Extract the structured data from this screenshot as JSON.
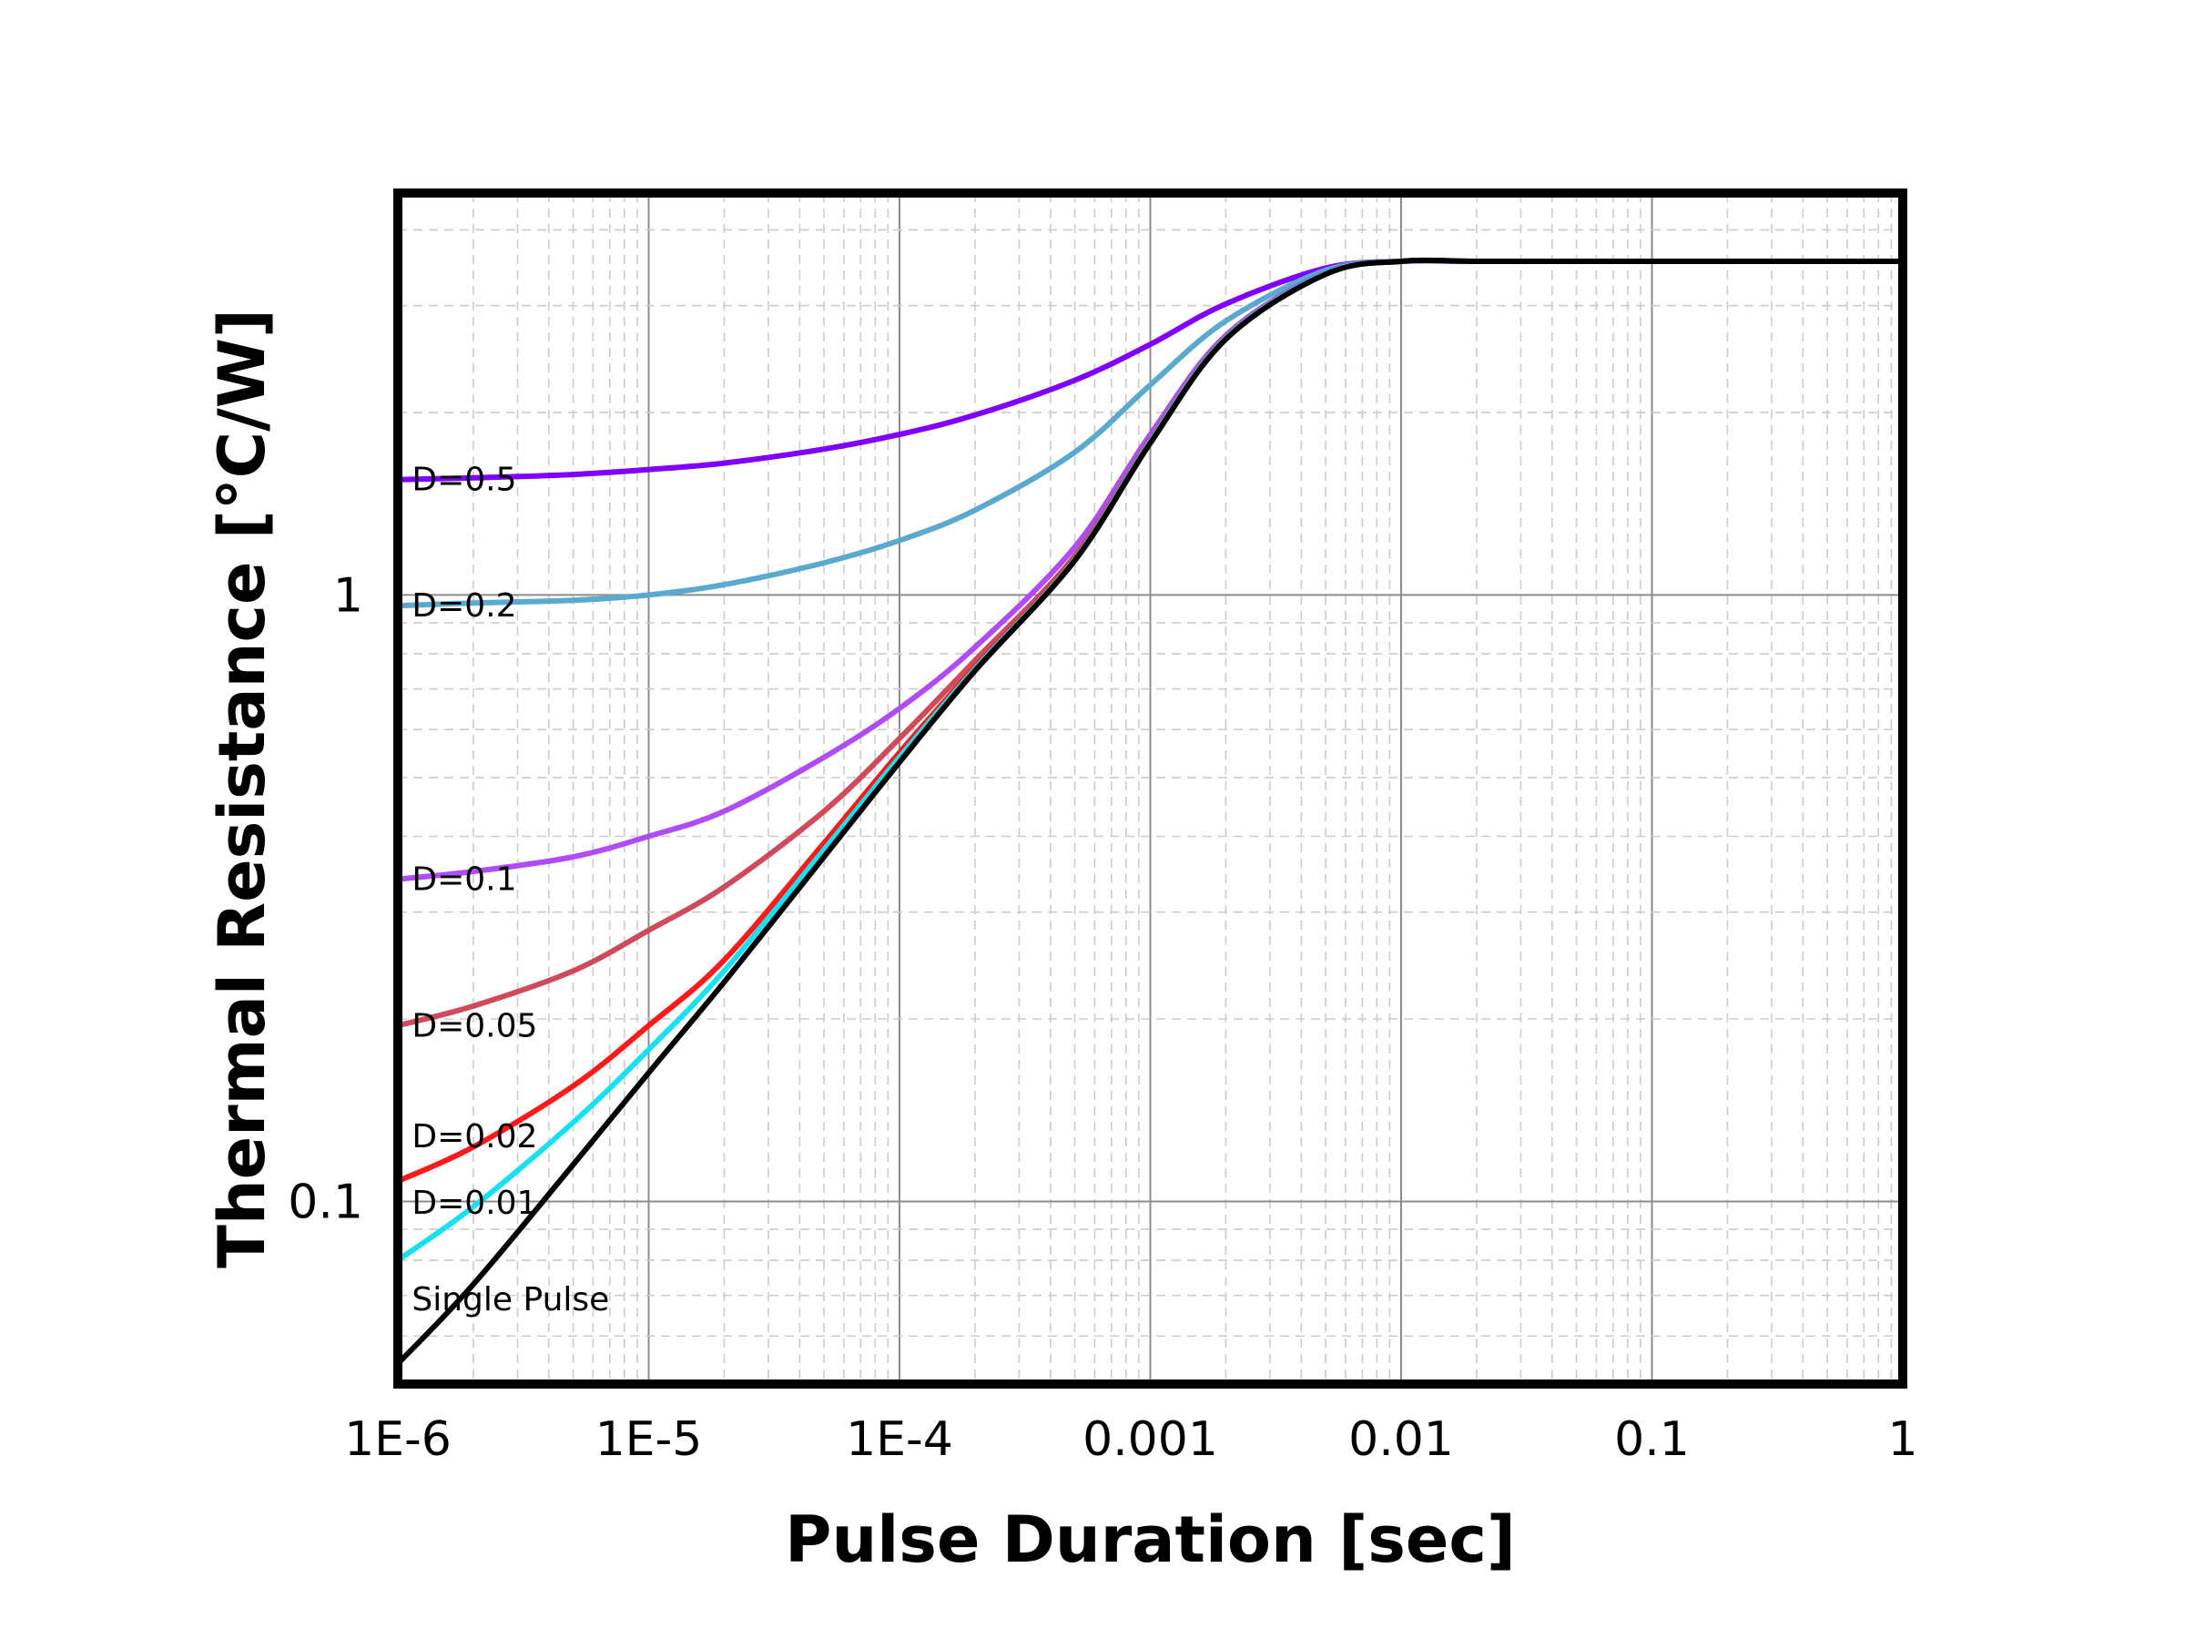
{
  "chart_data": {
    "type": "line",
    "title": "",
    "xlabel": "Pulse Duration [sec]",
    "ylabel": "Thermal Resistance [°C/W]",
    "xscale": "log",
    "yscale": "log",
    "xlim": [
      1e-06,
      1
    ],
    "ylim": [
      0.05,
      4.6
    ],
    "grid": true,
    "x_ticks": [
      {
        "value": 1e-06,
        "label": "1E-6"
      },
      {
        "value": 1e-05,
        "label": "1E-5"
      },
      {
        "value": 0.0001,
        "label": "1E-4"
      },
      {
        "value": 0.001,
        "label": "0.001"
      },
      {
        "value": 0.01,
        "label": "0.01"
      },
      {
        "value": 0.1,
        "label": "0.1"
      },
      {
        "value": 1,
        "label": "1"
      }
    ],
    "y_ticks": [
      {
        "value": 0.1,
        "label": "0.1"
      },
      {
        "value": 1,
        "label": "1"
      }
    ],
    "x": [
      1e-06,
      2e-06,
      5e-06,
      1e-05,
      2e-05,
      5e-05,
      0.0001,
      0.0002,
      0.0005,
      0.001,
      0.002,
      0.005,
      0.01,
      0.02,
      0.05,
      0.1,
      0.2,
      0.5,
      1
    ],
    "series": [
      {
        "name": "D=0.5",
        "label": "D=0.5",
        "color": "#7f00ff",
        "label_x": 1.1e-06,
        "values": [
          1.55,
          1.56,
          1.58,
          1.61,
          1.65,
          1.74,
          1.84,
          1.98,
          2.26,
          2.59,
          3.02,
          3.46,
          3.55,
          3.55,
          3.55,
          3.55,
          3.55,
          3.55,
          3.55
        ]
      },
      {
        "name": "D=0.2",
        "label": "D=0.2",
        "color": "#5aaad0",
        "label_x": 1.1e-06,
        "values": [
          0.96,
          0.97,
          0.98,
          1.0,
          1.04,
          1.13,
          1.23,
          1.38,
          1.72,
          2.22,
          2.83,
          3.43,
          3.55,
          3.55,
          3.55,
          3.55,
          3.55,
          3.55,
          3.55
        ]
      },
      {
        "name": "D=0.1",
        "label": "D=0.1",
        "color": "#b04cf5",
        "label_x": 1.1e-06,
        "values": [
          0.34,
          0.35,
          0.37,
          0.4,
          0.44,
          0.54,
          0.65,
          0.82,
          1.2,
          1.84,
          2.68,
          3.4,
          3.55,
          3.55,
          3.55,
          3.55,
          3.55,
          3.55,
          3.55
        ]
      },
      {
        "name": "D=0.05",
        "label": "D=0.05",
        "color": "#cf4a5a",
        "label_x": 1.1e-06,
        "values": [
          0.195,
          0.21,
          0.24,
          0.28,
          0.33,
          0.44,
          0.58,
          0.78,
          1.16,
          1.8,
          2.66,
          3.39,
          3.55,
          3.55,
          3.55,
          3.55,
          3.55,
          3.55,
          3.55
        ]
      },
      {
        "name": "D=0.02",
        "label": "D=0.02",
        "color": "#ff1a1a",
        "label_x": 1.1e-06,
        "values": [
          0.108,
          0.123,
          0.155,
          0.195,
          0.25,
          0.39,
          0.55,
          0.76,
          1.15,
          1.79,
          2.65,
          3.39,
          3.55,
          3.55,
          3.55,
          3.55,
          3.55,
          3.55,
          3.55
        ]
      },
      {
        "name": "D=0.01",
        "label": "D=0.01",
        "color": "#19e0f0",
        "label_x": 1.1e-06,
        "values": [
          0.08,
          0.098,
          0.135,
          0.178,
          0.24,
          0.38,
          0.54,
          0.755,
          1.145,
          1.79,
          2.65,
          3.39,
          3.55,
          3.55,
          3.55,
          3.55,
          3.55,
          3.55,
          3.55
        ]
      },
      {
        "name": "Single Pulse",
        "label": "Single Pulse",
        "color": "#000000",
        "label_x": 1.1e-06,
        "values": [
          0.054,
          0.073,
          0.115,
          0.163,
          0.23,
          0.37,
          0.53,
          0.75,
          1.14,
          1.78,
          2.64,
          3.38,
          3.55,
          3.55,
          3.55,
          3.55,
          3.55,
          3.55,
          3.55
        ]
      }
    ],
    "label_y": [
      1.55,
      0.96,
      0.34,
      0.195,
      0.128,
      0.0995,
      0.069
    ]
  }
}
